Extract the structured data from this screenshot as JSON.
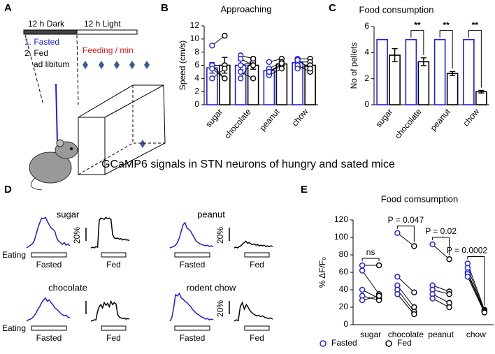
{
  "heading": "GCaMP6 signals in STN neurons of hungry and sated mice",
  "diagram": {
    "panel": "A",
    "dark": "12 h Dark",
    "light": "12 h Light",
    "fasted": "1. Fasted",
    "fed": "2. Fed",
    "fed_note": "ad libitum",
    "feeding": "Feeding / min"
  },
  "chart_data": [
    {
      "panel": "B",
      "type": "bar",
      "title": "Approaching",
      "ylabel": "Speed (cm/s)",
      "categories": [
        "sugar",
        "chocolate",
        "peanut",
        "chow"
      ],
      "ylim": [
        0,
        12
      ],
      "yticks": [
        0,
        2,
        4,
        6,
        8,
        10,
        12
      ],
      "series": [
        {
          "color": "#1e1ee6",
          "values": [
            5.6,
            6.0,
            5.2,
            6.4
          ],
          "errors": [
            0.8,
            0.7,
            0.4,
            0.4
          ],
          "points": [
            [
              9,
              6,
              6,
              4,
              5.5
            ],
            [
              7.5,
              6,
              5,
              4,
              7
            ],
            [
              6.5,
              5.5,
              5,
              4.5,
              5
            ],
            [
              7,
              6.5,
              6,
              5.5,
              6.8
            ]
          ]
        },
        {
          "color": "#000000",
          "values": [
            6.0,
            6.0,
            6.2,
            6.0
          ],
          "errors": [
            1.2,
            0.6,
            0.3,
            0.4
          ],
          "points": [
            [
              10.5,
              6,
              4,
              5.5,
              4
            ],
            [
              7,
              6.5,
              4,
              7,
              6
            ],
            [
              7,
              6.5,
              6,
              5.5,
              6.3
            ],
            [
              7,
              6.5,
              5,
              6,
              5.5
            ]
          ]
        }
      ]
    },
    {
      "panel": "C",
      "type": "bar",
      "title": "Food consumption",
      "ylabel": "No of pellets",
      "categories": [
        "sugar",
        "chocolate",
        "peanut",
        "chow"
      ],
      "ylim": [
        0,
        6
      ],
      "yticks": [
        0,
        2,
        4,
        6
      ],
      "annotations": [
        null,
        "**",
        "**",
        "**"
      ],
      "series": [
        {
          "color": "#1e1ee6",
          "values": [
            5,
            5,
            5,
            5
          ]
        },
        {
          "color": "#000000",
          "values": [
            3.8,
            3.3,
            2.4,
            1.0
          ],
          "errors": [
            0.5,
            0.3,
            0.15,
            0.1
          ]
        }
      ]
    },
    {
      "panel": "E",
      "type": "paired",
      "title": "Food comsumption",
      "ylabel": "% ΔF/F₀",
      "categories": [
        "sugar",
        "chocolate",
        "peanut",
        "chow"
      ],
      "ylim": [
        0,
        120
      ],
      "yticks": [
        0,
        20,
        40,
        60,
        80,
        100,
        120
      ],
      "annotations": [
        "ns",
        "P = 0.047",
        "P = 0.02",
        "P = 0.0002"
      ],
      "legend": "bottom",
      "series": [
        {
          "name": "Fasted",
          "color": "#1e1ee6",
          "values": [
            [
              68,
              62,
              40,
              33,
              28
            ],
            [
              105,
              55,
              45,
              40,
              35
            ],
            [
              92,
              45,
              40,
              35,
              30
            ],
            [
              70,
              65,
              60,
              58,
              55
            ]
          ]
        },
        {
          "name": "Fed",
          "color": "#000000",
          "values": [
            [
              68,
              35,
              30,
              28,
              33
            ],
            [
              90,
              37,
              20,
              15,
              12
            ],
            [
              75,
              38,
              35,
              25,
              20
            ],
            [
              17,
              16,
              15,
              15,
              14
            ]
          ]
        }
      ]
    },
    {
      "panel": "D",
      "type": "traces",
      "scale_bar": 20,
      "panels": [
        {
          "title": "sugar",
          "event_label": "Eating",
          "scale_label": "20%",
          "fasted": {
            "label": "Fasted",
            "color": "#1e1ee6",
            "values": [
              0,
              2,
              4,
              6,
              10,
              20,
              30,
              38,
              45,
              44,
              46,
              40,
              35,
              30,
              28,
              25,
              15,
              10,
              8,
              5,
              8,
              4,
              6,
              3
            ]
          },
          "fed": {
            "label": "Fed",
            "color": "#000000",
            "values": [
              0,
              1,
              0,
              2,
              1,
              42,
              45,
              44,
              43,
              46,
              44,
              45,
              43,
              20,
              15,
              14,
              15,
              13,
              14,
              12,
              13,
              12,
              12,
              11
            ]
          }
        },
        {
          "title": "peanut",
          "scale_label": "20%",
          "fasted": {
            "label": "Fasted",
            "color": "#1e1ee6",
            "values": [
              0,
              1,
              2,
              4,
              8,
              15,
              25,
              35,
              38,
              30,
              28,
              25,
              20,
              15,
              10,
              8,
              6,
              5,
              4,
              3,
              4,
              2,
              3,
              2
            ]
          },
          "fed": {
            "label": "Fed",
            "color": "#000000",
            "values": [
              0,
              1,
              0,
              2,
              3,
              6,
              8,
              10,
              7,
              8,
              6,
              5,
              6,
              4,
              5,
              3,
              4,
              3,
              4,
              2,
              3,
              2,
              3,
              2
            ]
          }
        },
        {
          "title": "chocolate",
          "event_label": "Eating",
          "fasted": {
            "label": "Fasted",
            "color": "#1e1ee6",
            "values": [
              0,
              2,
              3,
              5,
              8,
              12,
              18,
              22,
              28,
              32,
              35,
              30,
              32,
              28,
              25,
              20,
              18,
              15,
              12,
              10,
              8,
              9,
              6,
              5
            ]
          },
          "fed": {
            "label": "Fed",
            "color": "#000000",
            "values": [
              0,
              1,
              2,
              2,
              15,
              22,
              25,
              20,
              28,
              24,
              27,
              22,
              30,
              25,
              28,
              26,
              10,
              6,
              5,
              4,
              5,
              3,
              4,
              3
            ]
          }
        },
        {
          "title": "rodent chow",
          "scale_label": "20%",
          "fasted": {
            "label": "Fasted",
            "color": "#1e1ee6",
            "values": [
              0,
              5,
              20,
              40,
              38,
              42,
              35,
              33,
              30,
              28,
              25,
              22,
              18,
              15,
              12,
              10,
              8,
              6,
              5,
              3,
              4,
              2,
              3,
              2
            ]
          },
          "fed": {
            "label": "Fed",
            "color": "#000000",
            "values": [
              0,
              2,
              1,
              22,
              28,
              18,
              25,
              20,
              15,
              12,
              10,
              8,
              9,
              7,
              8,
              6,
              5,
              4,
              5,
              3
            ]
          }
        }
      ]
    }
  ]
}
